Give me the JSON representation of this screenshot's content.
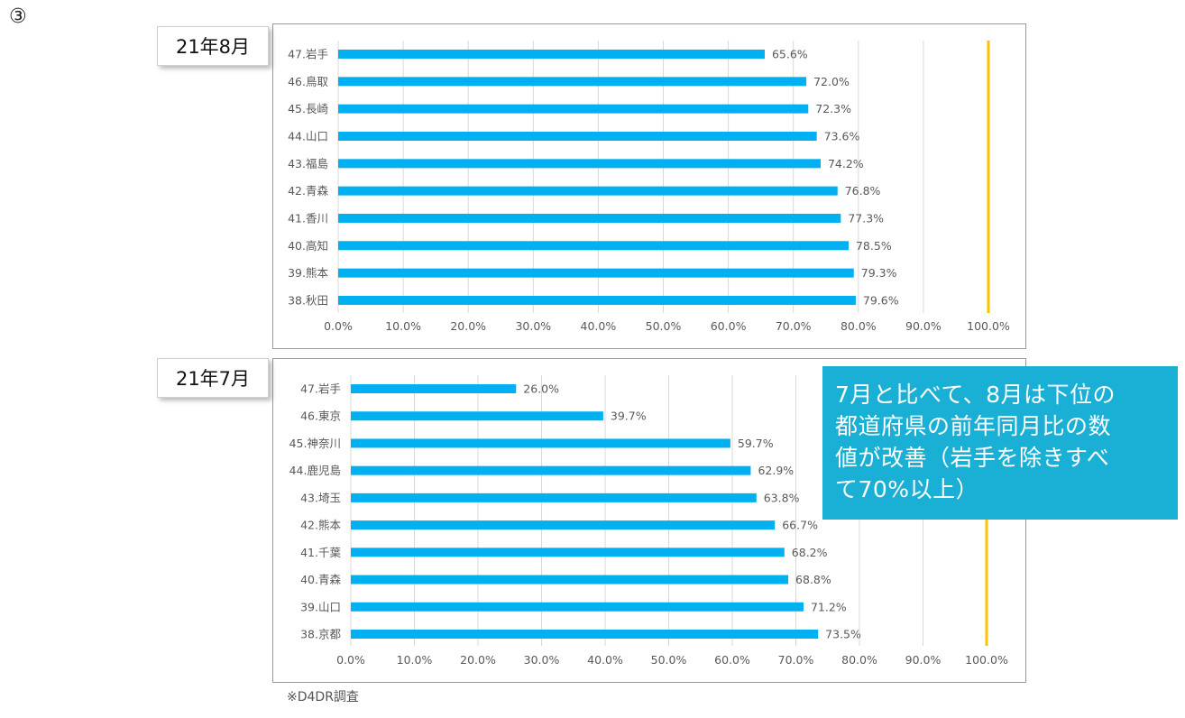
{
  "marker": "③",
  "colors": {
    "bar": "#00b0f0",
    "reference_line": "#ffc000",
    "grid": "#d9d9d9",
    "callout_bg": "#1ab0d6"
  },
  "callout": {
    "lines": [
      "7月と比べて、8月は下位の",
      "都道府県の前年同月比の数",
      "値が改善（岩手を除きすべ",
      "て70%以上）"
    ]
  },
  "source": "※D4DR調査",
  "chart_data": [
    {
      "type": "bar",
      "orientation": "horizontal",
      "title": "21年8月",
      "categories": [
        "47.岩手",
        "46.鳥取",
        "45.長崎",
        "44.山口",
        "43.福島",
        "42.青森",
        "41.香川",
        "40.高知",
        "39.熊本",
        "38.秋田"
      ],
      "values": [
        65.6,
        72.0,
        72.3,
        73.6,
        74.2,
        76.8,
        77.3,
        78.5,
        79.3,
        79.6
      ],
      "value_labels": [
        "65.6%",
        "72.0%",
        "72.3%",
        "73.6%",
        "74.2%",
        "76.8%",
        "77.3%",
        "78.5%",
        "79.3%",
        "79.6%"
      ],
      "xlim": [
        0,
        100
      ],
      "xticks": [
        "0.0%",
        "10.0%",
        "20.0%",
        "30.0%",
        "40.0%",
        "50.0%",
        "60.0%",
        "70.0%",
        "80.0%",
        "90.0%",
        "100.0%"
      ],
      "reference_line": 100,
      "grid": true
    },
    {
      "type": "bar",
      "orientation": "horizontal",
      "title": "21年7月",
      "categories": [
        "47.岩手",
        "46.東京",
        "45.神奈川",
        "44.鹿児島",
        "43.埼玉",
        "42.熊本",
        "41.千葉",
        "40.青森",
        "39.山口",
        "38.京都"
      ],
      "values": [
        26.0,
        39.7,
        59.7,
        62.9,
        63.8,
        66.7,
        68.2,
        68.8,
        71.2,
        73.5
      ],
      "value_labels": [
        "26.0%",
        "39.7%",
        "59.7%",
        "62.9%",
        "63.8%",
        "66.7%",
        "68.2%",
        "68.8%",
        "71.2%",
        "73.5%"
      ],
      "xlim": [
        0,
        100
      ],
      "xticks": [
        "0.0%",
        "10.0%",
        "20.0%",
        "30.0%",
        "40.0%",
        "50.0%",
        "60.0%",
        "70.0%",
        "80.0%",
        "90.0%",
        "100.0%"
      ],
      "reference_line": 100,
      "grid": true
    }
  ]
}
